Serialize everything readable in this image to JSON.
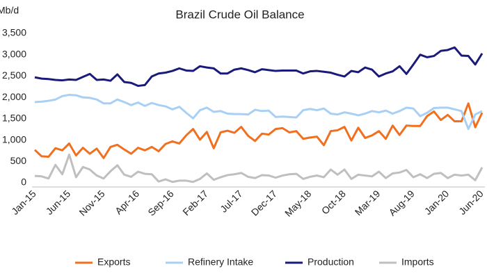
{
  "chart_data": {
    "type": "line",
    "title": "Brazil Crude Oil Balance",
    "y_label": "Mb/d",
    "categories": [
      "Jan-15",
      null,
      null,
      null,
      null,
      "Jun-15",
      null,
      null,
      null,
      null,
      "Nov-15",
      null,
      null,
      null,
      null,
      "Apr-16",
      null,
      null,
      null,
      null,
      "Sep-16",
      null,
      null,
      null,
      null,
      "Feb-17",
      null,
      null,
      null,
      null,
      "Jul-17",
      null,
      null,
      null,
      null,
      "Dec-17",
      null,
      null,
      null,
      null,
      "May-18",
      null,
      null,
      null,
      null,
      "Oct-18",
      null,
      null,
      null,
      null,
      "Mar-19",
      null,
      null,
      null,
      null,
      "Aug-19",
      null,
      null,
      null,
      null,
      "Jan-20",
      null,
      null,
      null,
      null,
      "Jun-20"
    ],
    "series": [
      {
        "name": "Exports",
        "color": "#f07020",
        "values": [
          770,
          620,
          610,
          810,
          760,
          920,
          640,
          820,
          680,
          800,
          580,
          840,
          890,
          780,
          680,
          820,
          760,
          840,
          740,
          910,
          970,
          920,
          1110,
          1260,
          1010,
          1190,
          810,
          1180,
          1220,
          1170,
          1310,
          1100,
          980,
          1150,
          1130,
          1260,
          1280,
          1180,
          1210,
          1030,
          1060,
          1080,
          880,
          1210,
          1230,
          1310,
          990,
          1290,
          1050,
          1110,
          1210,
          1030,
          1340,
          1120,
          1340,
          1330,
          1330,
          1560,
          1670,
          1470,
          1590,
          1440,
          1440,
          1860,
          1300,
          1640
        ]
      },
      {
        "name": "Refinery Intake",
        "color": "#a8d0f5",
        "values": [
          1890,
          1900,
          1920,
          1950,
          2030,
          2060,
          2050,
          2000,
          1990,
          1950,
          1860,
          1860,
          1950,
          1890,
          1820,
          1880,
          1800,
          1870,
          1820,
          1790,
          1720,
          1780,
          1640,
          1510,
          1700,
          1760,
          1660,
          1680,
          1620,
          1610,
          1610,
          1600,
          1710,
          1680,
          1690,
          1540,
          1550,
          1540,
          1530,
          1700,
          1730,
          1700,
          1740,
          1620,
          1600,
          1650,
          1620,
          1580,
          1620,
          1680,
          1650,
          1690,
          1620,
          1680,
          1760,
          1740,
          1560,
          1640,
          1750,
          1760,
          1760,
          1720,
          1680,
          1260,
          1600,
          1680
        ]
      },
      {
        "name": "Production",
        "color": "#1a1a7a",
        "values": [
          2470,
          2440,
          2430,
          2410,
          2400,
          2420,
          2410,
          2480,
          2550,
          2410,
          2420,
          2390,
          2540,
          2360,
          2340,
          2270,
          2290,
          2490,
          2560,
          2580,
          2620,
          2680,
          2630,
          2620,
          2730,
          2700,
          2680,
          2560,
          2560,
          2650,
          2680,
          2640,
          2590,
          2660,
          2640,
          2620,
          2630,
          2630,
          2630,
          2560,
          2610,
          2620,
          2600,
          2580,
          2530,
          2490,
          2620,
          2590,
          2700,
          2650,
          2490,
          2560,
          2610,
          2730,
          2550,
          2770,
          3000,
          2940,
          2970,
          3090,
          3110,
          3170,
          2980,
          2970,
          2770,
          3030
        ]
      },
      {
        "name": "Imports",
        "color": "#bfbfbf",
        "values": [
          160,
          150,
          100,
          420,
          200,
          660,
          130,
          370,
          310,
          170,
          100,
          270,
          410,
          190,
          140,
          260,
          210,
          200,
          30,
          80,
          20,
          50,
          50,
          20,
          90,
          220,
          70,
          130,
          180,
          200,
          230,
          140,
          110,
          180,
          170,
          120,
          170,
          200,
          210,
          90,
          140,
          170,
          130,
          310,
          190,
          310,
          90,
          190,
          170,
          150,
          260,
          110,
          220,
          240,
          300,
          130,
          200,
          110,
          210,
          230,
          110,
          190,
          170,
          190,
          60,
          360
        ]
      }
    ],
    "ylim": [
      0,
      3500
    ],
    "yticks": [
      0,
      500,
      {
        "value": 1000,
        "label": "1,000"
      },
      {
        "value": 1500,
        "label": "1,500"
      },
      {
        "value": 2000,
        "label": "2,000"
      },
      {
        "value": 2500,
        "label": "2,500"
      },
      {
        "value": 3000,
        "label": "3,000"
      },
      {
        "value": 3500,
        "label": "3,500"
      }
    ],
    "grid": false,
    "legend": "bottom"
  }
}
